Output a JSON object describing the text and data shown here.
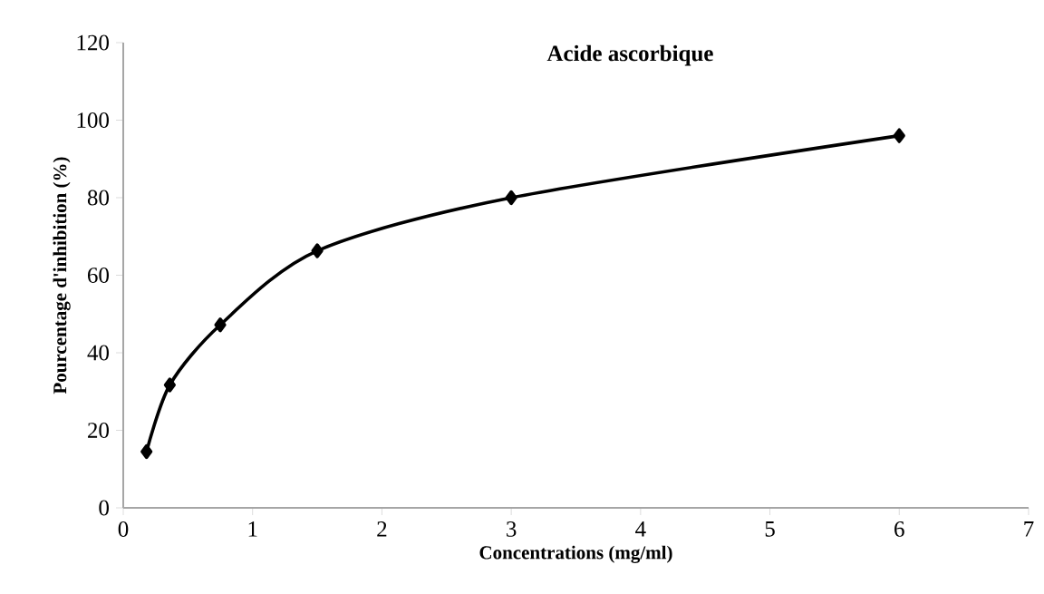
{
  "chart_data": {
    "type": "line",
    "title": "Acide ascorbique",
    "xlabel": "Concentrations (mg/ml)",
    "ylabel": "Pourcentage d'inhibition (%)",
    "x": [
      0.18,
      0.36,
      0.75,
      1.5,
      3,
      6
    ],
    "series": [
      {
        "color": "#000000",
        "values": [
          14.5,
          31.7,
          47.2,
          66.3,
          80,
          96
        ]
      }
    ],
    "xlim": [
      0,
      7
    ],
    "xticks": [
      0,
      1,
      2,
      3,
      4,
      5,
      6,
      7
    ],
    "ylim": [
      0,
      120
    ],
    "yticks": [
      0,
      20,
      40,
      60,
      80,
      100,
      120
    ],
    "marker": "diamond",
    "line_style": "solid"
  }
}
